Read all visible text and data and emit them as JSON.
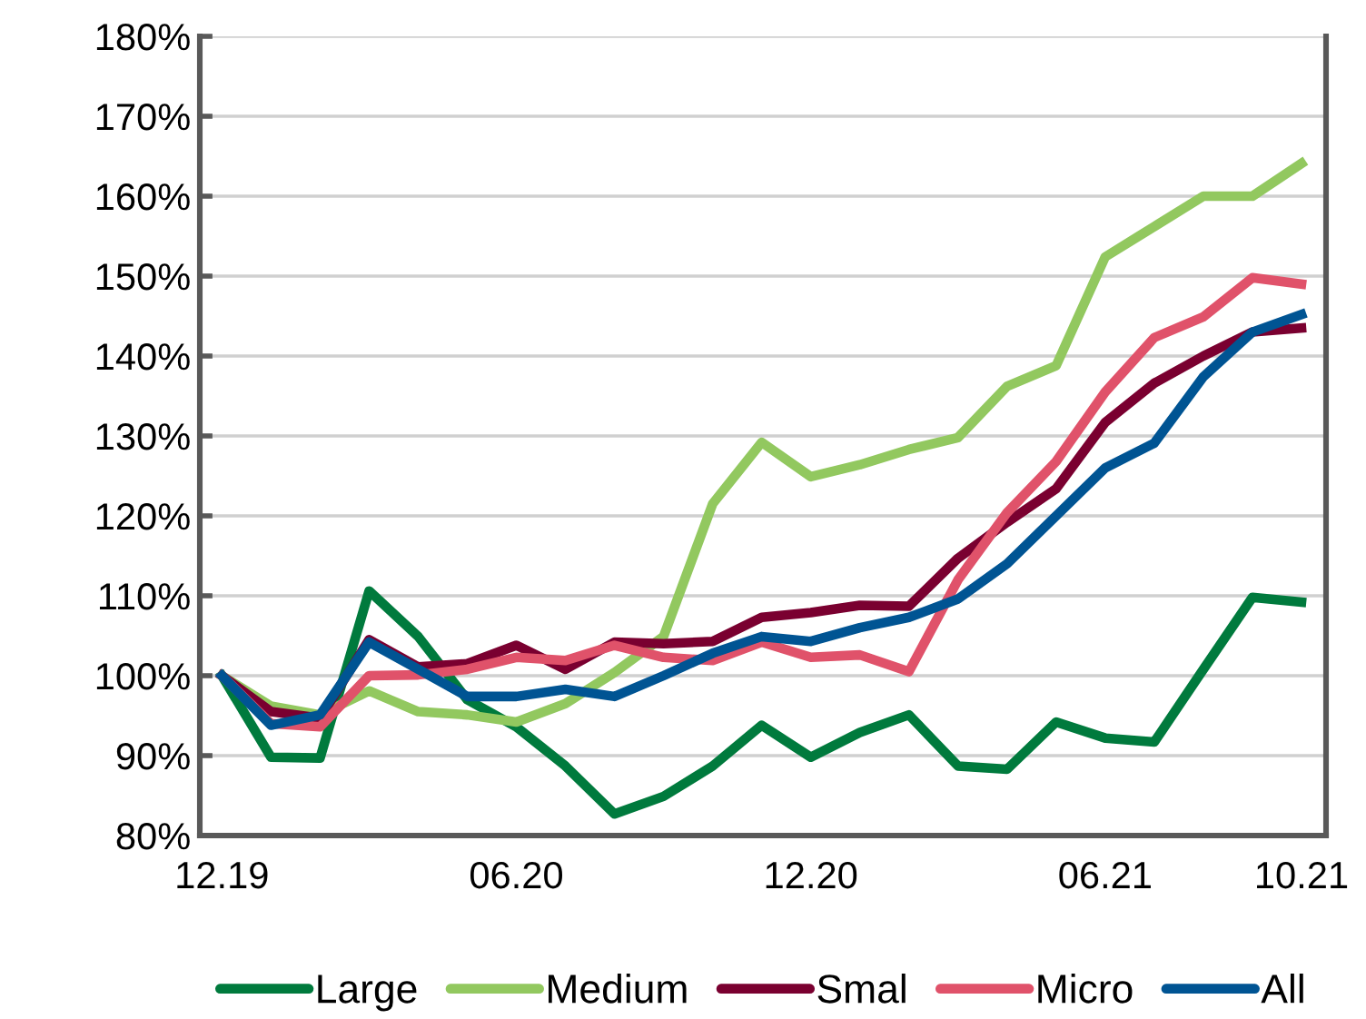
{
  "chart_data": {
    "type": "line",
    "categories": [
      "12.19",
      null,
      null,
      null,
      null,
      null,
      "06.20",
      null,
      null,
      null,
      null,
      null,
      "12.20",
      null,
      null,
      null,
      null,
      null,
      "06.21",
      null,
      null,
      null,
      "10.21"
    ],
    "series": [
      {
        "name": "Large",
        "color": "#007a3d",
        "values": [
          100,
          89.8,
          89.7,
          110.6,
          104.9,
          97,
          93.6,
          88.7,
          82.7,
          84.9,
          88.7,
          93.8,
          89.8,
          92.9,
          95.1,
          88.7,
          88.3,
          94.2,
          92.2,
          91.7,
          100.8,
          109.8,
          109.2
        ]
      },
      {
        "name": "Medium",
        "color": "#92c85f",
        "values": [
          100,
          96.2,
          95.1,
          98.1,
          95.5,
          95.1,
          94.2,
          96.5,
          100.4,
          104.9,
          121.5,
          129.2,
          124.9,
          126.4,
          128.3,
          129.8,
          136.2,
          138.8,
          152.4,
          156.2,
          160,
          160,
          164.1
        ]
      },
      {
        "name": "Smal",
        "color": "#7a0030",
        "values": [
          100,
          95.5,
          94.7,
          104.5,
          101.1,
          101.5,
          103.8,
          100.8,
          104.2,
          104,
          104.3,
          107.3,
          107.9,
          108.8,
          108.7,
          114.7,
          119.2,
          123.4,
          131.7,
          136.6,
          140,
          143,
          143.5
        ]
      },
      {
        "name": "Micro",
        "color": "#e0526a",
        "values": [
          100,
          94,
          93.6,
          100,
          100.1,
          100.8,
          102.3,
          101.9,
          103.8,
          102.3,
          101.9,
          104.2,
          102.3,
          102.6,
          100.5,
          112,
          120.4,
          126.8,
          135.5,
          142.3,
          144.9,
          149.8,
          149
        ]
      },
      {
        "name": "All",
        "color": "#005493",
        "values": [
          100,
          93.8,
          95.1,
          104.2,
          100.8,
          97.4,
          97.4,
          98.3,
          97.4,
          100,
          102.8,
          104.9,
          104.3,
          106,
          107.3,
          109.6,
          114,
          120,
          126,
          129.1,
          137.4,
          143,
          145.2
        ]
      }
    ],
    "ylim": [
      80,
      180
    ],
    "yticks": [
      {
        "value": 80,
        "label": "80%"
      },
      {
        "value": 90,
        "label": "90%"
      },
      {
        "value": 100,
        "label": "100%"
      },
      {
        "value": 110,
        "label": "110%"
      },
      {
        "value": 120,
        "label": "120%"
      },
      {
        "value": 130,
        "label": "130%"
      },
      {
        "value": 140,
        "label": "140%"
      },
      {
        "value": 150,
        "label": "150%"
      },
      {
        "value": 160,
        "label": "160%"
      },
      {
        "value": 170,
        "label": "170%"
      },
      {
        "value": 180,
        "label": "180%"
      }
    ],
    "grid": "y",
    "legend": "bottom",
    "marker": "none",
    "line_style": "solid"
  }
}
